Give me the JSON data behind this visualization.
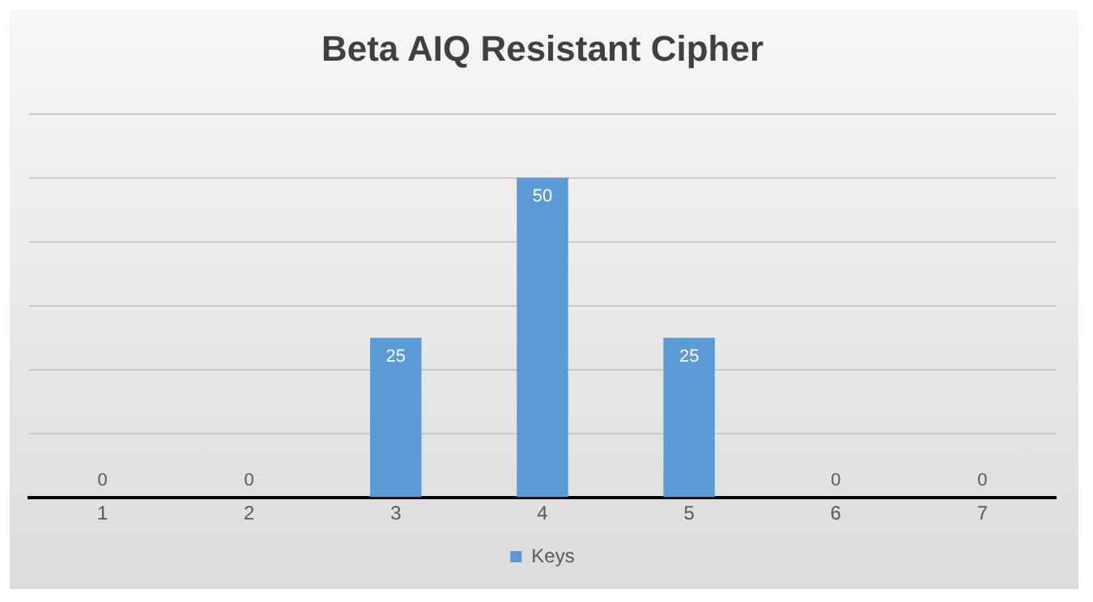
{
  "chart_data": {
    "type": "bar",
    "title": "Beta AIQ Resistant Cipher",
    "categories": [
      "1",
      "2",
      "3",
      "4",
      "5",
      "6",
      "7"
    ],
    "series": [
      {
        "name": "Keys",
        "color": "#5b9bd5",
        "values": [
          0,
          0,
          25,
          50,
          25,
          0,
          0
        ]
      }
    ],
    "ylim": [
      0,
      60
    ],
    "yticks": [
      {
        "value": 0,
        "label": null
      },
      {
        "value": 10,
        "label": null
      },
      {
        "value": 20,
        "label": null
      },
      {
        "value": 30,
        "label": null
      },
      {
        "value": 40,
        "label": null
      },
      {
        "value": 50,
        "label": null
      },
      {
        "value": 60,
        "label": null
      }
    ],
    "tick_labels": "x",
    "grid": "y",
    "legend": "bottom",
    "data_labels": true
  }
}
